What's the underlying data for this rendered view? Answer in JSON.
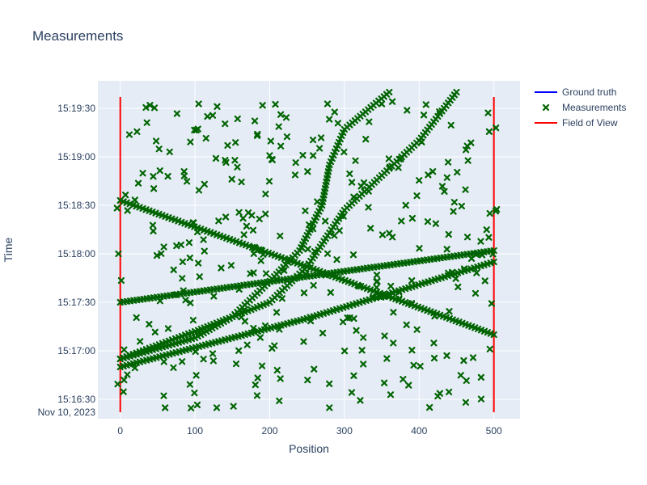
{
  "chart_data": {
    "type": "scatter",
    "title": "Measurements",
    "xlabel": "Position",
    "ylabel": "Time",
    "date": "Nov 10, 2023",
    "xlim": [
      -30,
      535
    ],
    "ylim": [
      "15:16:18",
      "15:19:47"
    ],
    "x_ticks": [
      0,
      100,
      200,
      300,
      400,
      500
    ],
    "y_ticks": [
      "15:16:30",
      "15:17:00",
      "15:17:30",
      "15:18:00",
      "15:18:30",
      "15:19:00",
      "15:19:30"
    ],
    "grid": true,
    "legend_position": "top-right",
    "colors": {
      "ground_truth": "#0000ff",
      "measurements": "#006400",
      "field_of_view": "#ff0000",
      "plot_bg": "#e5ecf6",
      "grid": "#ffffff"
    },
    "series": [
      {
        "name": "Ground truth",
        "kind": "line",
        "tracks": [
          [
            [
              0,
              "15:18:33"
            ],
            [
              250,
              "15:17:52"
            ],
            [
              500,
              "15:17:10"
            ]
          ],
          [
            [
              0,
              "15:17:30"
            ],
            [
              250,
              "15:17:46"
            ],
            [
              500,
              "15:18:02"
            ]
          ],
          [
            [
              0,
              "15:16:50"
            ],
            [
              250,
              "15:17:20"
            ],
            [
              500,
              "15:17:55"
            ]
          ],
          [
            [
              0,
              "15:16:55"
            ],
            [
              100,
              "15:17:08"
            ],
            [
              150,
              "15:17:21"
            ],
            [
              200,
              "15:17:43"
            ],
            [
              240,
              "15:18:02"
            ],
            [
              270,
              "15:18:30"
            ],
            [
              280,
              "15:18:55"
            ],
            [
              300,
              "15:19:17"
            ],
            [
              360,
              "15:19:40"
            ]
          ],
          [
            [
              0,
              "15:16:55"
            ],
            [
              100,
              "15:17:12"
            ],
            [
              200,
              "15:17:30"
            ],
            [
              250,
              "15:17:52"
            ],
            [
              300,
              "15:18:27"
            ],
            [
              400,
              "15:19:10"
            ],
            [
              450,
              "15:19:40"
            ]
          ]
        ]
      },
      {
        "name": "Measurements",
        "kind": "markers"
      },
      {
        "name": "Field of View",
        "kind": "line",
        "lines": [
          [
            [
              0,
              "15:16:22"
            ],
            [
              0,
              "15:19:37"
            ]
          ],
          [
            [
              500,
              "15:16:22"
            ],
            [
              500,
              "15:19:37"
            ]
          ]
        ]
      }
    ]
  }
}
